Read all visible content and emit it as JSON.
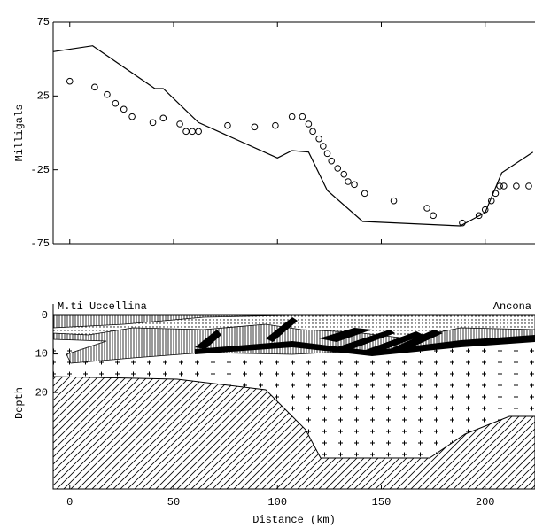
{
  "chart_data": [
    {
      "type": "line",
      "y_label": "Milligals",
      "xlim": [
        -8,
        224
      ],
      "ylim": [
        -75,
        75
      ],
      "yticks": [
        -75,
        -25,
        25,
        75
      ],
      "series": [
        {
          "style": "line",
          "color": "#000000",
          "x": [
            -8,
            11,
            41,
            45,
            62,
            100,
            107,
            115,
            124,
            141,
            188,
            200,
            208,
            223
          ],
          "values": [
            55,
            59,
            30,
            30,
            7,
            -17,
            -12,
            -13,
            -39,
            -60,
            -63,
            -54,
            -27,
            -13
          ]
        },
        {
          "style": "circle",
          "color": "#000000",
          "x": [
            0,
            12,
            18,
            22,
            26,
            30,
            40,
            45,
            53,
            56,
            59,
            62,
            76,
            89,
            99,
            107,
            112,
            115,
            117,
            120,
            122,
            124,
            126,
            129,
            132,
            134,
            137,
            142,
            156,
            172,
            175,
            189,
            197,
            200,
            203,
            205,
            207,
            209,
            215,
            221
          ],
          "values": [
            35,
            31,
            26,
            20,
            16,
            11,
            7,
            10,
            6,
            1,
            1,
            1,
            5,
            4,
            5,
            11,
            11,
            6,
            1,
            -4,
            -9,
            -14,
            -19,
            -24,
            -28,
            -33,
            -35,
            -41,
            -46,
            -51,
            -56,
            -61,
            -56,
            -52,
            -46,
            -41,
            -36,
            -36,
            -36,
            -36
          ]
        }
      ]
    },
    {
      "type": "cross-section",
      "x_label": "Distance (km)",
      "y_label": "Depth",
      "xlim": [
        -8,
        224
      ],
      "xticks": [
        0,
        50,
        100,
        150,
        200
      ],
      "ylim": [
        0,
        45
      ],
      "yticks": [
        0,
        10,
        20
      ],
      "y_inverted": true,
      "annotations": [
        "M.ti Uccellina",
        "Ancona"
      ]
    }
  ]
}
